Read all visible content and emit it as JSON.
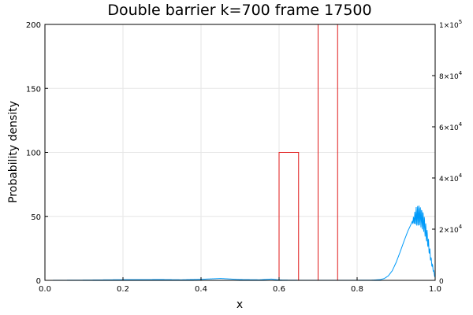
{
  "chart_data": {
    "type": "line",
    "title": "Double barrier k=700 frame 17500",
    "xlabel": "x",
    "ylabel": "Probability density",
    "xlim": [
      0,
      1
    ],
    "ylim": [
      0,
      200
    ],
    "y2lim": [
      0,
      100000
    ],
    "grid": true,
    "legend": "none",
    "x_ticks": [
      "0.0",
      "0.2",
      "0.4",
      "0.6",
      "0.8",
      "1.0"
    ],
    "y_ticks": [
      "0",
      "50",
      "100",
      "150",
      "200"
    ],
    "y2_ticks": [
      {
        "base": "0",
        "exp": ""
      },
      {
        "base": "2×10",
        "exp": "4"
      },
      {
        "base": "4×10",
        "exp": "4"
      },
      {
        "base": "6×10",
        "exp": "4"
      },
      {
        "base": "8×10",
        "exp": "4"
      },
      {
        "base": "1×10",
        "exp": "5"
      }
    ],
    "series": [
      {
        "color": "#009af9",
        "axis": "left",
        "x": [
          0.0,
          0.1,
          0.2,
          0.3,
          0.35,
          0.4,
          0.45,
          0.5,
          0.55,
          0.58,
          0.6,
          0.62,
          0.65,
          0.7,
          0.75,
          0.8,
          0.84,
          0.86,
          0.87,
          0.88,
          0.89,
          0.9,
          0.91,
          0.92,
          0.93,
          0.94,
          0.95,
          0.96,
          0.97,
          0.98,
          0.99,
          1.0
        ],
        "y": [
          0.0,
          0.2,
          0.5,
          0.6,
          0.4,
          0.8,
          1.5,
          0.6,
          0.4,
          1.0,
          0.3,
          0.2,
          0.1,
          0.1,
          0.1,
          0.1,
          0.2,
          0.6,
          1.5,
          3.5,
          7.5,
          14.0,
          22.0,
          30.5,
          38.5,
          45.0,
          49.5,
          51.0,
          46.0,
          33.0,
          15.0,
          2.0
        ],
        "oscillation": {
          "from_x": 0.94,
          "period": 0.0035,
          "amplitude": 0.16
        }
      },
      {
        "color": "#e01a1a",
        "axis": "left",
        "x": [
          0.0,
          0.6,
          0.6,
          0.65,
          0.65,
          0.7,
          0.7,
          0.75,
          0.75,
          1.0
        ],
        "y": [
          0,
          0,
          100,
          100,
          0,
          0,
          200,
          200,
          0,
          0
        ]
      }
    ]
  }
}
